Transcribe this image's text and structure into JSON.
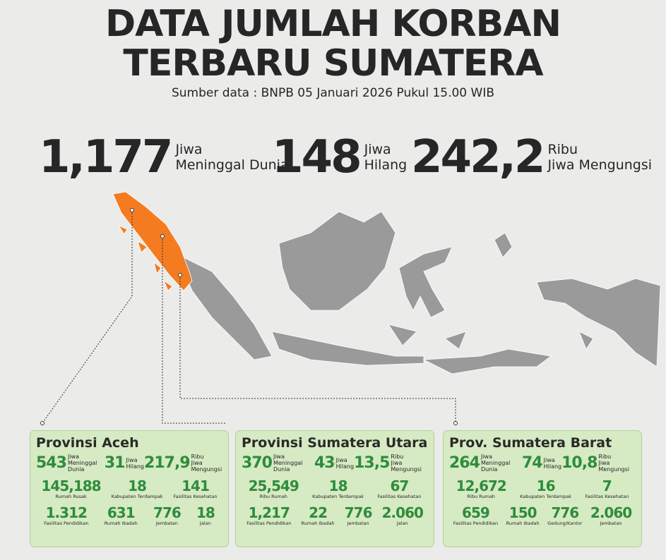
{
  "header": {
    "title": [
      "DATA JUMLAH KORBAN",
      "TERBARU SUMATERA"
    ],
    "source": "Sumber data : BNPB 05 Januari 2026 Pukul 15.00 WIB"
  },
  "summary": [
    {
      "value": "1,177",
      "label": [
        "Jiwa",
        "Meninggal Dunia"
      ]
    },
    {
      "value": "148",
      "label": [
        "Jiwa",
        "Hilang"
      ]
    },
    {
      "value": "242,2",
      "label": [
        "Ribu",
        "Jiwa Mengungsi"
      ]
    }
  ],
  "panels": [
    {
      "title": "Provinsi Aceh",
      "top": [
        {
          "value": "543",
          "label": [
            "Jiwa",
            "Meninggal Dunia"
          ]
        },
        {
          "value": "31",
          "label": [
            "Jiwa",
            "Hilang"
          ]
        },
        {
          "value": "217,9",
          "label": [
            "Ribu",
            "Jiwa Mengungsi"
          ]
        }
      ],
      "rows": [
        [
          {
            "value": "145,188",
            "label": "Rumah Rusak"
          },
          {
            "value": "18",
            "label": "Kabupaten Terdampak"
          },
          {
            "value": "141",
            "label": "Fasilitas Kesehatan"
          }
        ],
        [
          {
            "value": "1.312",
            "label": "Fasilitas Pendidikan"
          },
          {
            "value": "631",
            "label": "Rumah Ibadah"
          },
          {
            "value": "776",
            "label": "Jembatan"
          },
          {
            "value": "18",
            "label": "Jalan"
          }
        ]
      ]
    },
    {
      "title": "Provinsi Sumatera Utara",
      "top": [
        {
          "value": "370",
          "label": [
            "Jiwa",
            "Meninggal Dunia"
          ]
        },
        {
          "value": "43",
          "label": [
            "Jiwa",
            "Hilang"
          ]
        },
        {
          "value": "13,5",
          "label": [
            "Ribu",
            "Jiwa Mengungsi"
          ]
        }
      ],
      "rows": [
        [
          {
            "value": "25,549",
            "label": "Ribu Rumah"
          },
          {
            "value": "18",
            "label": "Kabupaten Terdampak"
          },
          {
            "value": "67",
            "label": "Fasilitas Kesehatan"
          }
        ],
        [
          {
            "value": "1,217",
            "label": "Fasilitas Pendidikan"
          },
          {
            "value": "22",
            "label": "Rumah Ibadah"
          },
          {
            "value": "776",
            "label": "Jembatan"
          },
          {
            "value": "2.060",
            "label": "Jalan"
          }
        ]
      ]
    },
    {
      "title": "Prov. Sumatera Barat",
      "top": [
        {
          "value": "264",
          "label": [
            "Jiwa",
            "Meninggal Dunia"
          ]
        },
        {
          "value": "74",
          "label": [
            "Jiwa",
            "Hilang"
          ]
        },
        {
          "value": "10,8",
          "label": [
            "Ribu",
            "Jiwa Mengungsi"
          ]
        }
      ],
      "rows": [
        [
          {
            "value": "12,672",
            "label": "Ribu Rumah"
          },
          {
            "value": "16",
            "label": "Kabupaten Terdampak"
          },
          {
            "value": "7",
            "label": "Fasilitas Kesehatan"
          }
        ],
        [
          {
            "value": "659",
            "label": "Fasilitas Pendidikan"
          },
          {
            "value": "150",
            "label": "Rumah Ibadah"
          },
          {
            "value": "776",
            "label": "Gedung/Kantor"
          },
          {
            "value": "2.060",
            "label": "Jembatan"
          }
        ]
      ]
    }
  ]
}
